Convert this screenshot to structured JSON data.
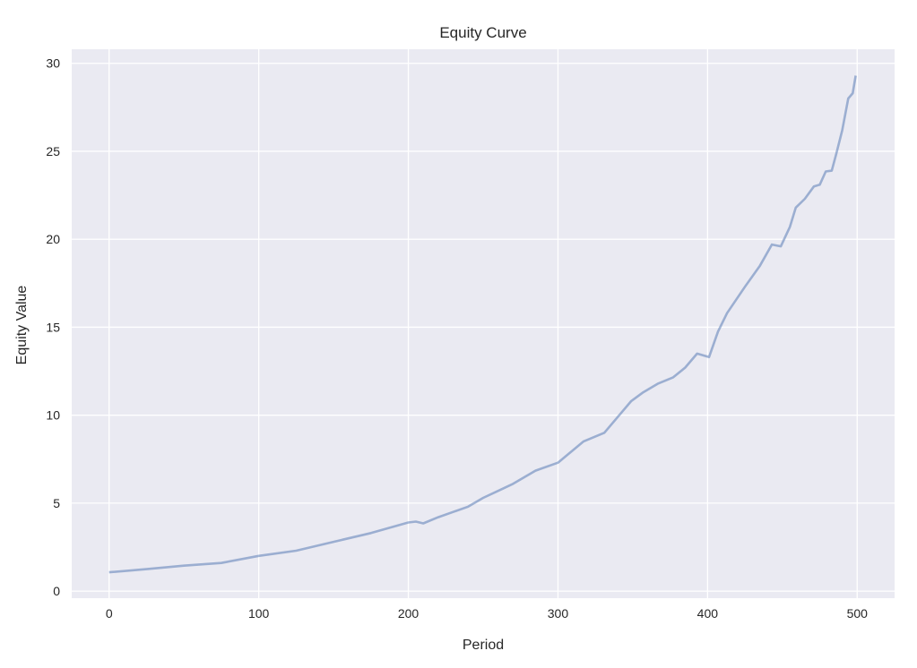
{
  "chart_data": {
    "type": "line",
    "title": "Equity Curve",
    "xlabel": "Period",
    "ylabel": "Equity Value",
    "xlim": [
      -25,
      525
    ],
    "ylim": [
      -0.4,
      30.8
    ],
    "xticks": [
      0,
      100,
      200,
      300,
      400,
      500
    ],
    "yticks": [
      0,
      5,
      10,
      15,
      20,
      25,
      30
    ],
    "grid": true,
    "background": "#EAEAF2",
    "grid_color": "#FFFFFF",
    "line_color": "#4C72B0",
    "line_alpha": 0.5,
    "series": [
      {
        "x": [
          0,
          25,
          50,
          75,
          100,
          125,
          150,
          175,
          200,
          205,
          210,
          220,
          230,
          240,
          250,
          260,
          270,
          285,
          300,
          317,
          331,
          343,
          349,
          357,
          367,
          377,
          385,
          393,
          401,
          407,
          413,
          425,
          435,
          443,
          449,
          455,
          459,
          465,
          471,
          475,
          479,
          483,
          486,
          490,
          494,
          497,
          499
        ],
        "y": [
          1.07,
          1.25,
          1.45,
          1.6,
          2.0,
          2.3,
          2.8,
          3.3,
          3.9,
          3.95,
          3.85,
          4.2,
          4.5,
          4.8,
          5.3,
          5.7,
          6.1,
          6.85,
          7.3,
          8.5,
          9.0,
          10.2,
          10.8,
          11.3,
          11.8,
          12.15,
          12.7,
          13.5,
          13.3,
          14.75,
          15.8,
          17.3,
          18.5,
          19.7,
          19.6,
          20.7,
          21.8,
          22.3,
          23.0,
          23.1,
          23.85,
          23.9,
          24.85,
          26.2,
          28.0,
          28.3,
          29.3
        ]
      }
    ]
  }
}
